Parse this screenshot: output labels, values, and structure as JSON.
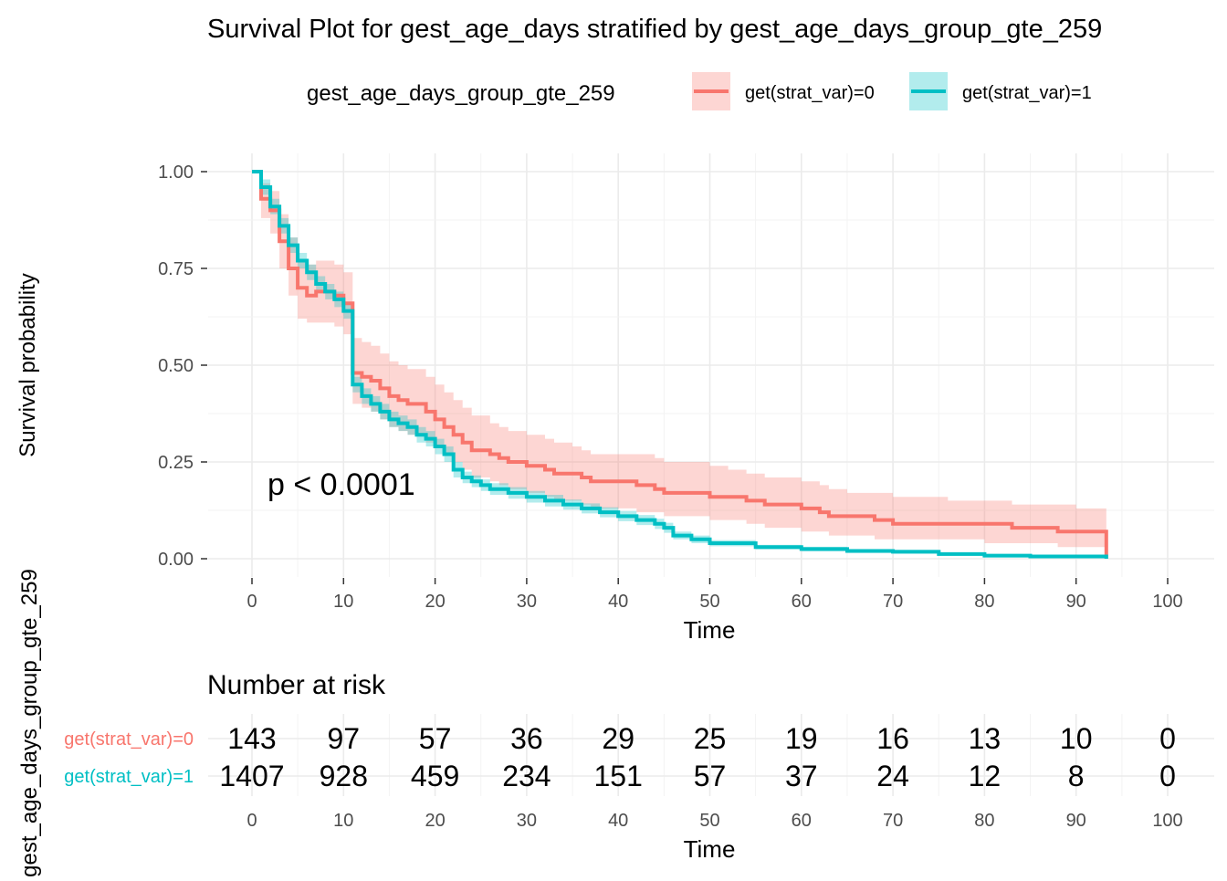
{
  "chart_data": [
    {
      "type": "line",
      "subtype": "kaplan-meier step",
      "title": "Survival Plot for gest_age_days stratified by gest_age_days_group_gte_259",
      "xlabel": "Time",
      "ylabel": "Survival probability",
      "xlim": [
        0,
        100
      ],
      "ylim": [
        0,
        1
      ],
      "x_ticks": [
        0,
        10,
        20,
        30,
        40,
        50,
        60,
        70,
        80,
        90,
        100
      ],
      "y_ticks": [
        0,
        0.25,
        0.5,
        0.75,
        1.0
      ],
      "y_tick_labels": [
        "0.00",
        "0.25",
        "0.50",
        "0.75",
        "1.00"
      ],
      "grid": true,
      "legend": {
        "title": "gest_age_days_group_gte_259",
        "position": "top",
        "entries": [
          "get(strat_var)=0",
          "get(strat_var)=1"
        ]
      },
      "annotation": "p < 0.0001",
      "series": [
        {
          "name": "get(strat_var)=0",
          "color": "#F8766D",
          "x": [
            0,
            1,
            2,
            3,
            4,
            5,
            6,
            7,
            9,
            10,
            11,
            12,
            13,
            14,
            15,
            16,
            17,
            19,
            20,
            21,
            22,
            23,
            24,
            26,
            27,
            28,
            30,
            32,
            33,
            35,
            36,
            37,
            40,
            42,
            44,
            45,
            47,
            50,
            52,
            54,
            56,
            60,
            62,
            63,
            65,
            68,
            70,
            74,
            76,
            80,
            83,
            86,
            88,
            90,
            93.3
          ],
          "y": [
            1.0,
            0.93,
            0.9,
            0.82,
            0.75,
            0.7,
            0.68,
            0.69,
            0.68,
            0.66,
            0.48,
            0.47,
            0.46,
            0.44,
            0.42,
            0.41,
            0.4,
            0.38,
            0.36,
            0.34,
            0.32,
            0.3,
            0.28,
            0.27,
            0.26,
            0.25,
            0.24,
            0.23,
            0.22,
            0.22,
            0.21,
            0.2,
            0.2,
            0.19,
            0.18,
            0.17,
            0.17,
            0.16,
            0.16,
            0.15,
            0.14,
            0.13,
            0.12,
            0.11,
            0.11,
            0.1,
            0.09,
            0.09,
            0.09,
            0.09,
            0.08,
            0.08,
            0.07,
            0.07,
            0.0
          ],
          "ci_lower": [
            1.0,
            0.88,
            0.84,
            0.75,
            0.68,
            0.62,
            0.61,
            0.61,
            0.6,
            0.58,
            0.4,
            0.39,
            0.38,
            0.36,
            0.34,
            0.33,
            0.32,
            0.3,
            0.29,
            0.27,
            0.25,
            0.23,
            0.21,
            0.2,
            0.19,
            0.18,
            0.17,
            0.16,
            0.15,
            0.15,
            0.14,
            0.13,
            0.13,
            0.12,
            0.12,
            0.11,
            0.11,
            0.1,
            0.1,
            0.09,
            0.08,
            0.07,
            0.07,
            0.06,
            0.06,
            0.05,
            0.05,
            0.05,
            0.05,
            0.04,
            0.04,
            0.04,
            0.03,
            0.03,
            0.0
          ],
          "ci_upper": [
            1.0,
            0.97,
            0.95,
            0.89,
            0.83,
            0.77,
            0.76,
            0.77,
            0.76,
            0.74,
            0.57,
            0.56,
            0.55,
            0.53,
            0.51,
            0.5,
            0.49,
            0.47,
            0.45,
            0.43,
            0.41,
            0.39,
            0.37,
            0.35,
            0.34,
            0.33,
            0.32,
            0.31,
            0.3,
            0.29,
            0.28,
            0.27,
            0.27,
            0.27,
            0.26,
            0.25,
            0.25,
            0.24,
            0.23,
            0.22,
            0.21,
            0.2,
            0.19,
            0.18,
            0.17,
            0.17,
            0.16,
            0.16,
            0.15,
            0.15,
            0.14,
            0.14,
            0.14,
            0.13,
            0.13
          ]
        },
        {
          "name": "get(strat_var)=1",
          "color": "#00BFC4",
          "x": [
            0,
            1,
            2,
            3,
            4,
            5,
            6,
            7,
            8,
            9,
            10,
            11,
            12,
            13,
            14,
            15,
            16,
            17,
            18,
            19,
            20,
            21,
            22,
            23,
            24,
            25,
            26,
            28,
            30,
            32,
            34,
            36,
            38,
            40,
            42,
            44,
            45,
            46,
            48,
            50,
            55,
            60,
            65,
            70,
            75,
            80,
            85,
            93.3
          ],
          "y": [
            1.0,
            0.96,
            0.91,
            0.86,
            0.81,
            0.77,
            0.74,
            0.71,
            0.69,
            0.67,
            0.64,
            0.45,
            0.42,
            0.4,
            0.38,
            0.36,
            0.35,
            0.34,
            0.32,
            0.31,
            0.29,
            0.27,
            0.23,
            0.21,
            0.2,
            0.19,
            0.18,
            0.17,
            0.16,
            0.15,
            0.14,
            0.13,
            0.12,
            0.11,
            0.1,
            0.09,
            0.08,
            0.06,
            0.05,
            0.04,
            0.03,
            0.025,
            0.02,
            0.018,
            0.012,
            0.008,
            0.006,
            0.0
          ],
          "ci_lower": [
            1.0,
            0.94,
            0.89,
            0.84,
            0.79,
            0.75,
            0.72,
            0.69,
            0.67,
            0.65,
            0.62,
            0.43,
            0.4,
            0.38,
            0.36,
            0.34,
            0.33,
            0.32,
            0.3,
            0.29,
            0.27,
            0.25,
            0.21,
            0.195,
            0.185,
            0.175,
            0.165,
            0.155,
            0.145,
            0.135,
            0.127,
            0.117,
            0.107,
            0.097,
            0.087,
            0.077,
            0.067,
            0.05,
            0.04,
            0.032,
            0.024,
            0.019,
            0.015,
            0.013,
            0.008,
            0.005,
            0.003,
            0.0
          ],
          "ci_upper": [
            1.0,
            0.98,
            0.93,
            0.88,
            0.83,
            0.79,
            0.76,
            0.73,
            0.71,
            0.69,
            0.66,
            0.47,
            0.44,
            0.42,
            0.4,
            0.38,
            0.37,
            0.36,
            0.34,
            0.33,
            0.31,
            0.29,
            0.25,
            0.225,
            0.215,
            0.205,
            0.195,
            0.185,
            0.175,
            0.165,
            0.153,
            0.143,
            0.133,
            0.123,
            0.113,
            0.103,
            0.093,
            0.07,
            0.06,
            0.048,
            0.036,
            0.031,
            0.025,
            0.023,
            0.016,
            0.011,
            0.009,
            0.009
          ]
        }
      ]
    },
    {
      "type": "table",
      "title": "Number at risk",
      "xlabel": "Time",
      "ylabel": "gest_age_days_group_gte_259",
      "x_ticks": [
        0,
        10,
        20,
        30,
        40,
        50,
        60,
        70,
        80,
        90,
        100
      ],
      "rows": [
        {
          "name": "get(strat_var)=0",
          "color": "#F8766D",
          "values": [
            143,
            97,
            57,
            36,
            29,
            25,
            19,
            16,
            13,
            10,
            0
          ]
        },
        {
          "name": "get(strat_var)=1",
          "color": "#00BFC4",
          "values": [
            1407,
            928,
            459,
            234,
            151,
            57,
            37,
            24,
            12,
            8,
            0
          ]
        }
      ]
    }
  ]
}
